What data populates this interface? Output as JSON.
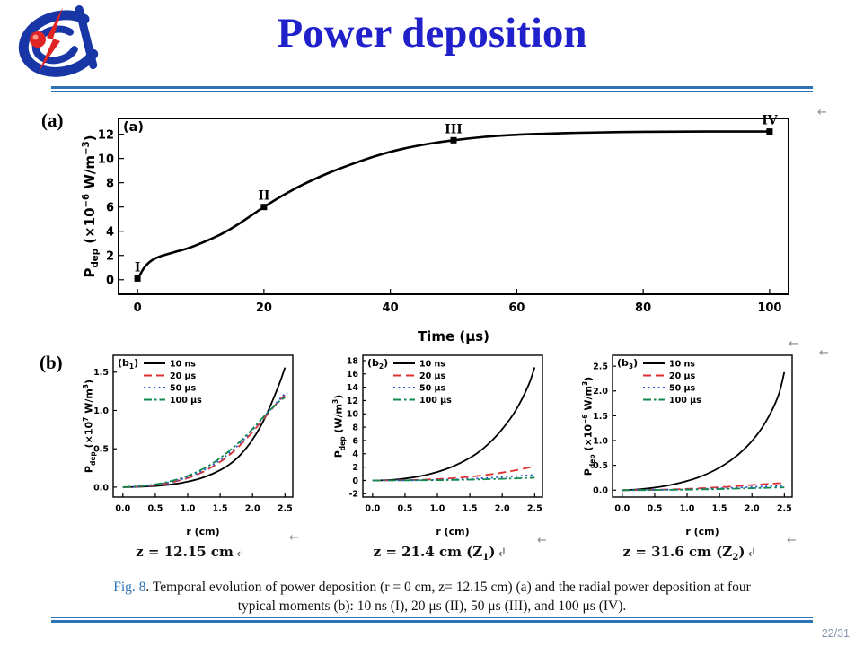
{
  "slide": {
    "title": "Power deposition",
    "page_number": "22/31",
    "panel_labels": {
      "a": "(a)",
      "b": "(b)"
    },
    "caption": {
      "fig": "Fig. 8",
      "line1_rest": ". Temporal evolution of power deposition (r = 0 cm, z= 12.15 cm) (a) and the radial power deposition at four",
      "line2": "typical moments (b): 10 ns (I), 20 μs (II), 50 μs (III), and 100 μs (IV)."
    },
    "subcaptions": [
      {
        "parts": [
          {
            "t": "z = 12.15 cm"
          }
        ]
      },
      {
        "parts": [
          {
            "t": "z = 21.4 cm (Z"
          },
          {
            "t": "1",
            "sub": true
          },
          {
            "t": ")"
          }
        ]
      },
      {
        "parts": [
          {
            "t": "z = 31.6 cm (Z"
          },
          {
            "t": "2",
            "sub": true
          },
          {
            "t": ")"
          }
        ]
      }
    ],
    "marks": {
      "anchor": "←",
      "return": "↲"
    },
    "colors": {
      "title": "#2121cc",
      "divider": "#2e74b5",
      "caption_fig": "#2e74b5",
      "page_number": "#8496b0",
      "logo_blue": "#1836a6",
      "logo_red": "#e02424",
      "series_black": "#000000",
      "series_red": "#e03131",
      "series_blue": "#2957d8",
      "series_green": "#11894f"
    }
  },
  "chart_data": [
    {
      "id": "a",
      "type": "line",
      "panel_label_parts": [
        {
          "t": "(a)"
        }
      ],
      "xlabel": "Time (μs)",
      "ylabel_parts": [
        {
          "t": "P"
        },
        {
          "t": "dep",
          "sub": true
        },
        {
          "t": " (×10"
        },
        {
          "t": "−6",
          "sup": true
        },
        {
          "t": " W/m"
        },
        {
          "t": "−3",
          "sup": true
        },
        {
          "t": ")"
        }
      ],
      "xlim": [
        -3,
        103
      ],
      "ylim": [
        -1.2,
        13.3
      ],
      "xticks": [
        0,
        20,
        40,
        60,
        80,
        100
      ],
      "xtick_labels": [
        "0",
        "20",
        "40",
        "60",
        "80",
        "100"
      ],
      "yticks": [
        0,
        2,
        4,
        6,
        8,
        10,
        12
      ],
      "ytick_labels": [
        "0",
        "2",
        "4",
        "6",
        "8",
        "10",
        "12"
      ],
      "series": [
        {
          "name": "Pdep",
          "color": "#000000",
          "dash": "solid",
          "x": [
            0,
            0.5,
            1,
            2,
            3,
            4,
            5,
            6,
            8,
            10,
            12,
            14,
            16,
            18,
            20,
            23,
            26,
            30,
            34,
            38,
            42,
            46,
            50,
            55,
            60,
            65,
            70,
            80,
            90,
            100
          ],
          "y": [
            0.1,
            0.5,
            0.95,
            1.5,
            1.8,
            2.0,
            2.15,
            2.3,
            2.6,
            3.0,
            3.45,
            3.97,
            4.6,
            5.3,
            6.0,
            6.95,
            7.8,
            8.75,
            9.55,
            10.25,
            10.8,
            11.2,
            11.5,
            11.78,
            11.95,
            12.05,
            12.12,
            12.2,
            12.22,
            12.22
          ]
        }
      ],
      "markers": [
        {
          "label": "I",
          "x": 0,
          "y": 0.1
        },
        {
          "label": "II",
          "x": 20,
          "y": 6.0
        },
        {
          "label": "III",
          "x": 50,
          "y": 11.5
        },
        {
          "label": "IV",
          "x": 100,
          "y": 12.22
        }
      ]
    },
    {
      "id": "b1",
      "type": "line",
      "panel_label_parts": [
        {
          "t": "(b"
        },
        {
          "t": "1",
          "sub": true
        },
        {
          "t": ")"
        }
      ],
      "xlabel": "r (cm)",
      "ylabel_parts": [
        {
          "t": "P"
        },
        {
          "t": "dep",
          "sub": true
        },
        {
          "t": " (×10"
        },
        {
          "t": "7",
          "sup": true
        },
        {
          "t": " W/m"
        },
        {
          "t": "3",
          "sup": true
        },
        {
          "t": ")"
        }
      ],
      "xlim": [
        -0.15,
        2.62
      ],
      "ylim": [
        -0.13,
        1.72
      ],
      "xticks": [
        0,
        0.5,
        1,
        1.5,
        2,
        2.5
      ],
      "xtick_labels": [
        "0.0",
        "0.5",
        "1.0",
        "1.5",
        "2.0",
        "2.5"
      ],
      "yticks": [
        0,
        0.5,
        1,
        1.5
      ],
      "ytick_labels": [
        "0.0",
        "0.5",
        "1.0",
        "1.5"
      ],
      "series": [
        {
          "name": "10 ns",
          "color": "#000000",
          "dash": "solid",
          "x": [
            0,
            0.2,
            0.4,
            0.6,
            0.8,
            1.0,
            1.2,
            1.4,
            1.6,
            1.8,
            2.0,
            2.2,
            2.4,
            2.5
          ],
          "y": [
            0,
            0.003,
            0.01,
            0.022,
            0.042,
            0.072,
            0.115,
            0.18,
            0.27,
            0.41,
            0.62,
            0.92,
            1.32,
            1.56
          ]
        },
        {
          "name": "20 μs",
          "color": "#e03131",
          "dash": "dashed",
          "x": [
            0,
            0.2,
            0.4,
            0.6,
            0.8,
            1.0,
            1.2,
            1.4,
            1.6,
            1.8,
            2.0,
            2.2,
            2.4,
            2.5
          ],
          "y": [
            0,
            0.006,
            0.018,
            0.04,
            0.072,
            0.118,
            0.185,
            0.275,
            0.39,
            0.54,
            0.72,
            0.92,
            1.12,
            1.2
          ]
        },
        {
          "name": "50 μs",
          "color": "#2957d8",
          "dash": "dotted",
          "x": [
            0,
            0.2,
            0.4,
            0.6,
            0.8,
            1.0,
            1.2,
            1.4,
            1.6,
            1.8,
            2.0,
            2.2,
            2.4,
            2.5
          ],
          "y": [
            0,
            0.007,
            0.02,
            0.044,
            0.08,
            0.13,
            0.2,
            0.295,
            0.415,
            0.565,
            0.745,
            0.94,
            1.13,
            1.22
          ]
        },
        {
          "name": "100 μs",
          "color": "#11894f",
          "dash": "dashdot",
          "x": [
            0,
            0.2,
            0.4,
            0.6,
            0.8,
            1.0,
            1.2,
            1.4,
            1.6,
            1.8,
            2.0,
            2.2,
            2.4,
            2.5
          ],
          "y": [
            0,
            0.009,
            0.025,
            0.052,
            0.092,
            0.148,
            0.222,
            0.32,
            0.445,
            0.59,
            0.76,
            0.945,
            1.11,
            1.17
          ]
        }
      ]
    },
    {
      "id": "b2",
      "type": "line",
      "panel_label_parts": [
        {
          "t": "(b"
        },
        {
          "t": "2",
          "sub": true
        },
        {
          "t": ")"
        }
      ],
      "xlabel": "r (cm)",
      "ylabel_parts": [
        {
          "t": "P"
        },
        {
          "t": "dep",
          "sub": true
        },
        {
          "t": " (W/m"
        },
        {
          "t": "3",
          "sup": true
        },
        {
          "t": ")"
        }
      ],
      "xlim": [
        -0.15,
        2.62
      ],
      "ylim": [
        -2.5,
        18.8
      ],
      "xticks": [
        0,
        0.5,
        1,
        1.5,
        2,
        2.5
      ],
      "xtick_labels": [
        "0.0",
        "0.5",
        "1.0",
        "1.5",
        "2.0",
        "2.5"
      ],
      "yticks": [
        -2,
        0,
        2,
        4,
        6,
        8,
        10,
        12,
        14,
        16,
        18
      ],
      "ytick_labels": [
        "-2",
        "0",
        "2",
        "4",
        "6",
        "8",
        "10",
        "12",
        "14",
        "16",
        "18"
      ],
      "series": [
        {
          "name": "10 ns",
          "color": "#000000",
          "dash": "solid",
          "x": [
            0,
            0.2,
            0.4,
            0.6,
            0.8,
            1.0,
            1.2,
            1.4,
            1.6,
            1.8,
            2.0,
            2.2,
            2.4,
            2.5
          ],
          "y": [
            0,
            0.05,
            0.18,
            0.42,
            0.78,
            1.28,
            1.95,
            2.85,
            4.0,
            5.6,
            7.7,
            10.4,
            14.2,
            17.0
          ]
        },
        {
          "name": "20 μs",
          "color": "#e03131",
          "dash": "dashed",
          "x": [
            0,
            0.2,
            0.4,
            0.6,
            0.8,
            1.0,
            1.2,
            1.4,
            1.6,
            1.8,
            2.0,
            2.2,
            2.4,
            2.5
          ],
          "y": [
            0,
            0.01,
            0.03,
            0.07,
            0.13,
            0.21,
            0.32,
            0.47,
            0.66,
            0.9,
            1.18,
            1.52,
            1.92,
            2.15
          ]
        },
        {
          "name": "50 μs",
          "color": "#2957d8",
          "dash": "dotted",
          "x": [
            0,
            0.2,
            0.4,
            0.6,
            0.8,
            1.0,
            1.2,
            1.4,
            1.6,
            1.8,
            2.0,
            2.2,
            2.4,
            2.5
          ],
          "y": [
            0,
            0.005,
            0.015,
            0.032,
            0.058,
            0.095,
            0.145,
            0.21,
            0.29,
            0.39,
            0.5,
            0.63,
            0.77,
            0.85
          ]
        },
        {
          "name": "100 μs",
          "color": "#11894f",
          "dash": "dashdot",
          "x": [
            0,
            0.2,
            0.4,
            0.6,
            0.8,
            1.0,
            1.2,
            1.4,
            1.6,
            1.8,
            2.0,
            2.2,
            2.4,
            2.5
          ],
          "y": [
            0,
            0.002,
            0.007,
            0.015,
            0.028,
            0.046,
            0.07,
            0.1,
            0.14,
            0.19,
            0.25,
            0.31,
            0.38,
            0.42
          ]
        }
      ]
    },
    {
      "id": "b3",
      "type": "line",
      "panel_label_parts": [
        {
          "t": "(b"
        },
        {
          "t": "3",
          "sub": true
        },
        {
          "t": ")"
        }
      ],
      "xlabel": "r (cm)",
      "ylabel_parts": [
        {
          "t": "P"
        },
        {
          "t": "dep",
          "sub": true
        },
        {
          "t": " (×10"
        },
        {
          "t": "−6",
          "sup": true
        },
        {
          "t": " W/m"
        },
        {
          "t": "3",
          "sup": true
        },
        {
          "t": ")"
        }
      ],
      "xlim": [
        -0.15,
        2.62
      ],
      "ylim": [
        -0.14,
        2.72
      ],
      "xticks": [
        0,
        0.5,
        1,
        1.5,
        2,
        2.5
      ],
      "xtick_labels": [
        "0.0",
        "0.5",
        "1.0",
        "1.5",
        "2.0",
        "2.5"
      ],
      "yticks": [
        0,
        0.5,
        1,
        1.5,
        2,
        2.5
      ],
      "ytick_labels": [
        "0.0",
        "0.5",
        "1.0",
        "1.5",
        "2.0",
        "2.5"
      ],
      "series": [
        {
          "name": "10 ns",
          "color": "#000000",
          "dash": "solid",
          "x": [
            0,
            0.2,
            0.4,
            0.6,
            0.8,
            1.0,
            1.2,
            1.4,
            1.6,
            1.8,
            2.0,
            2.2,
            2.4,
            2.5
          ],
          "y": [
            0,
            0.012,
            0.035,
            0.07,
            0.12,
            0.185,
            0.27,
            0.385,
            0.535,
            0.73,
            0.99,
            1.35,
            1.88,
            2.38
          ]
        },
        {
          "name": "20 μs",
          "color": "#e03131",
          "dash": "dashed",
          "x": [
            0,
            0.2,
            0.4,
            0.6,
            0.8,
            1.0,
            1.2,
            1.4,
            1.6,
            1.8,
            2.0,
            2.2,
            2.4,
            2.5
          ],
          "y": [
            0,
            0.002,
            0.005,
            0.01,
            0.017,
            0.026,
            0.037,
            0.051,
            0.067,
            0.085,
            0.104,
            0.122,
            0.138,
            0.145
          ]
        },
        {
          "name": "50 μs",
          "color": "#2957d8",
          "dash": "dotted",
          "x": [
            0,
            0.2,
            0.4,
            0.6,
            0.8,
            1.0,
            1.2,
            1.4,
            1.6,
            1.8,
            2.0,
            2.2,
            2.4,
            2.5
          ],
          "y": [
            0,
            0.001,
            0.003,
            0.006,
            0.011,
            0.017,
            0.024,
            0.033,
            0.043,
            0.054,
            0.065,
            0.076,
            0.085,
            0.09
          ]
        },
        {
          "name": "100 μs",
          "color": "#11894f",
          "dash": "dashdot",
          "x": [
            0,
            0.2,
            0.4,
            0.6,
            0.8,
            1.0,
            1.2,
            1.4,
            1.6,
            1.8,
            2.0,
            2.2,
            2.4,
            2.5
          ],
          "y": [
            0,
            0.001,
            0.002,
            0.004,
            0.007,
            0.01,
            0.015,
            0.02,
            0.026,
            0.033,
            0.04,
            0.047,
            0.053,
            0.056
          ]
        }
      ]
    }
  ]
}
